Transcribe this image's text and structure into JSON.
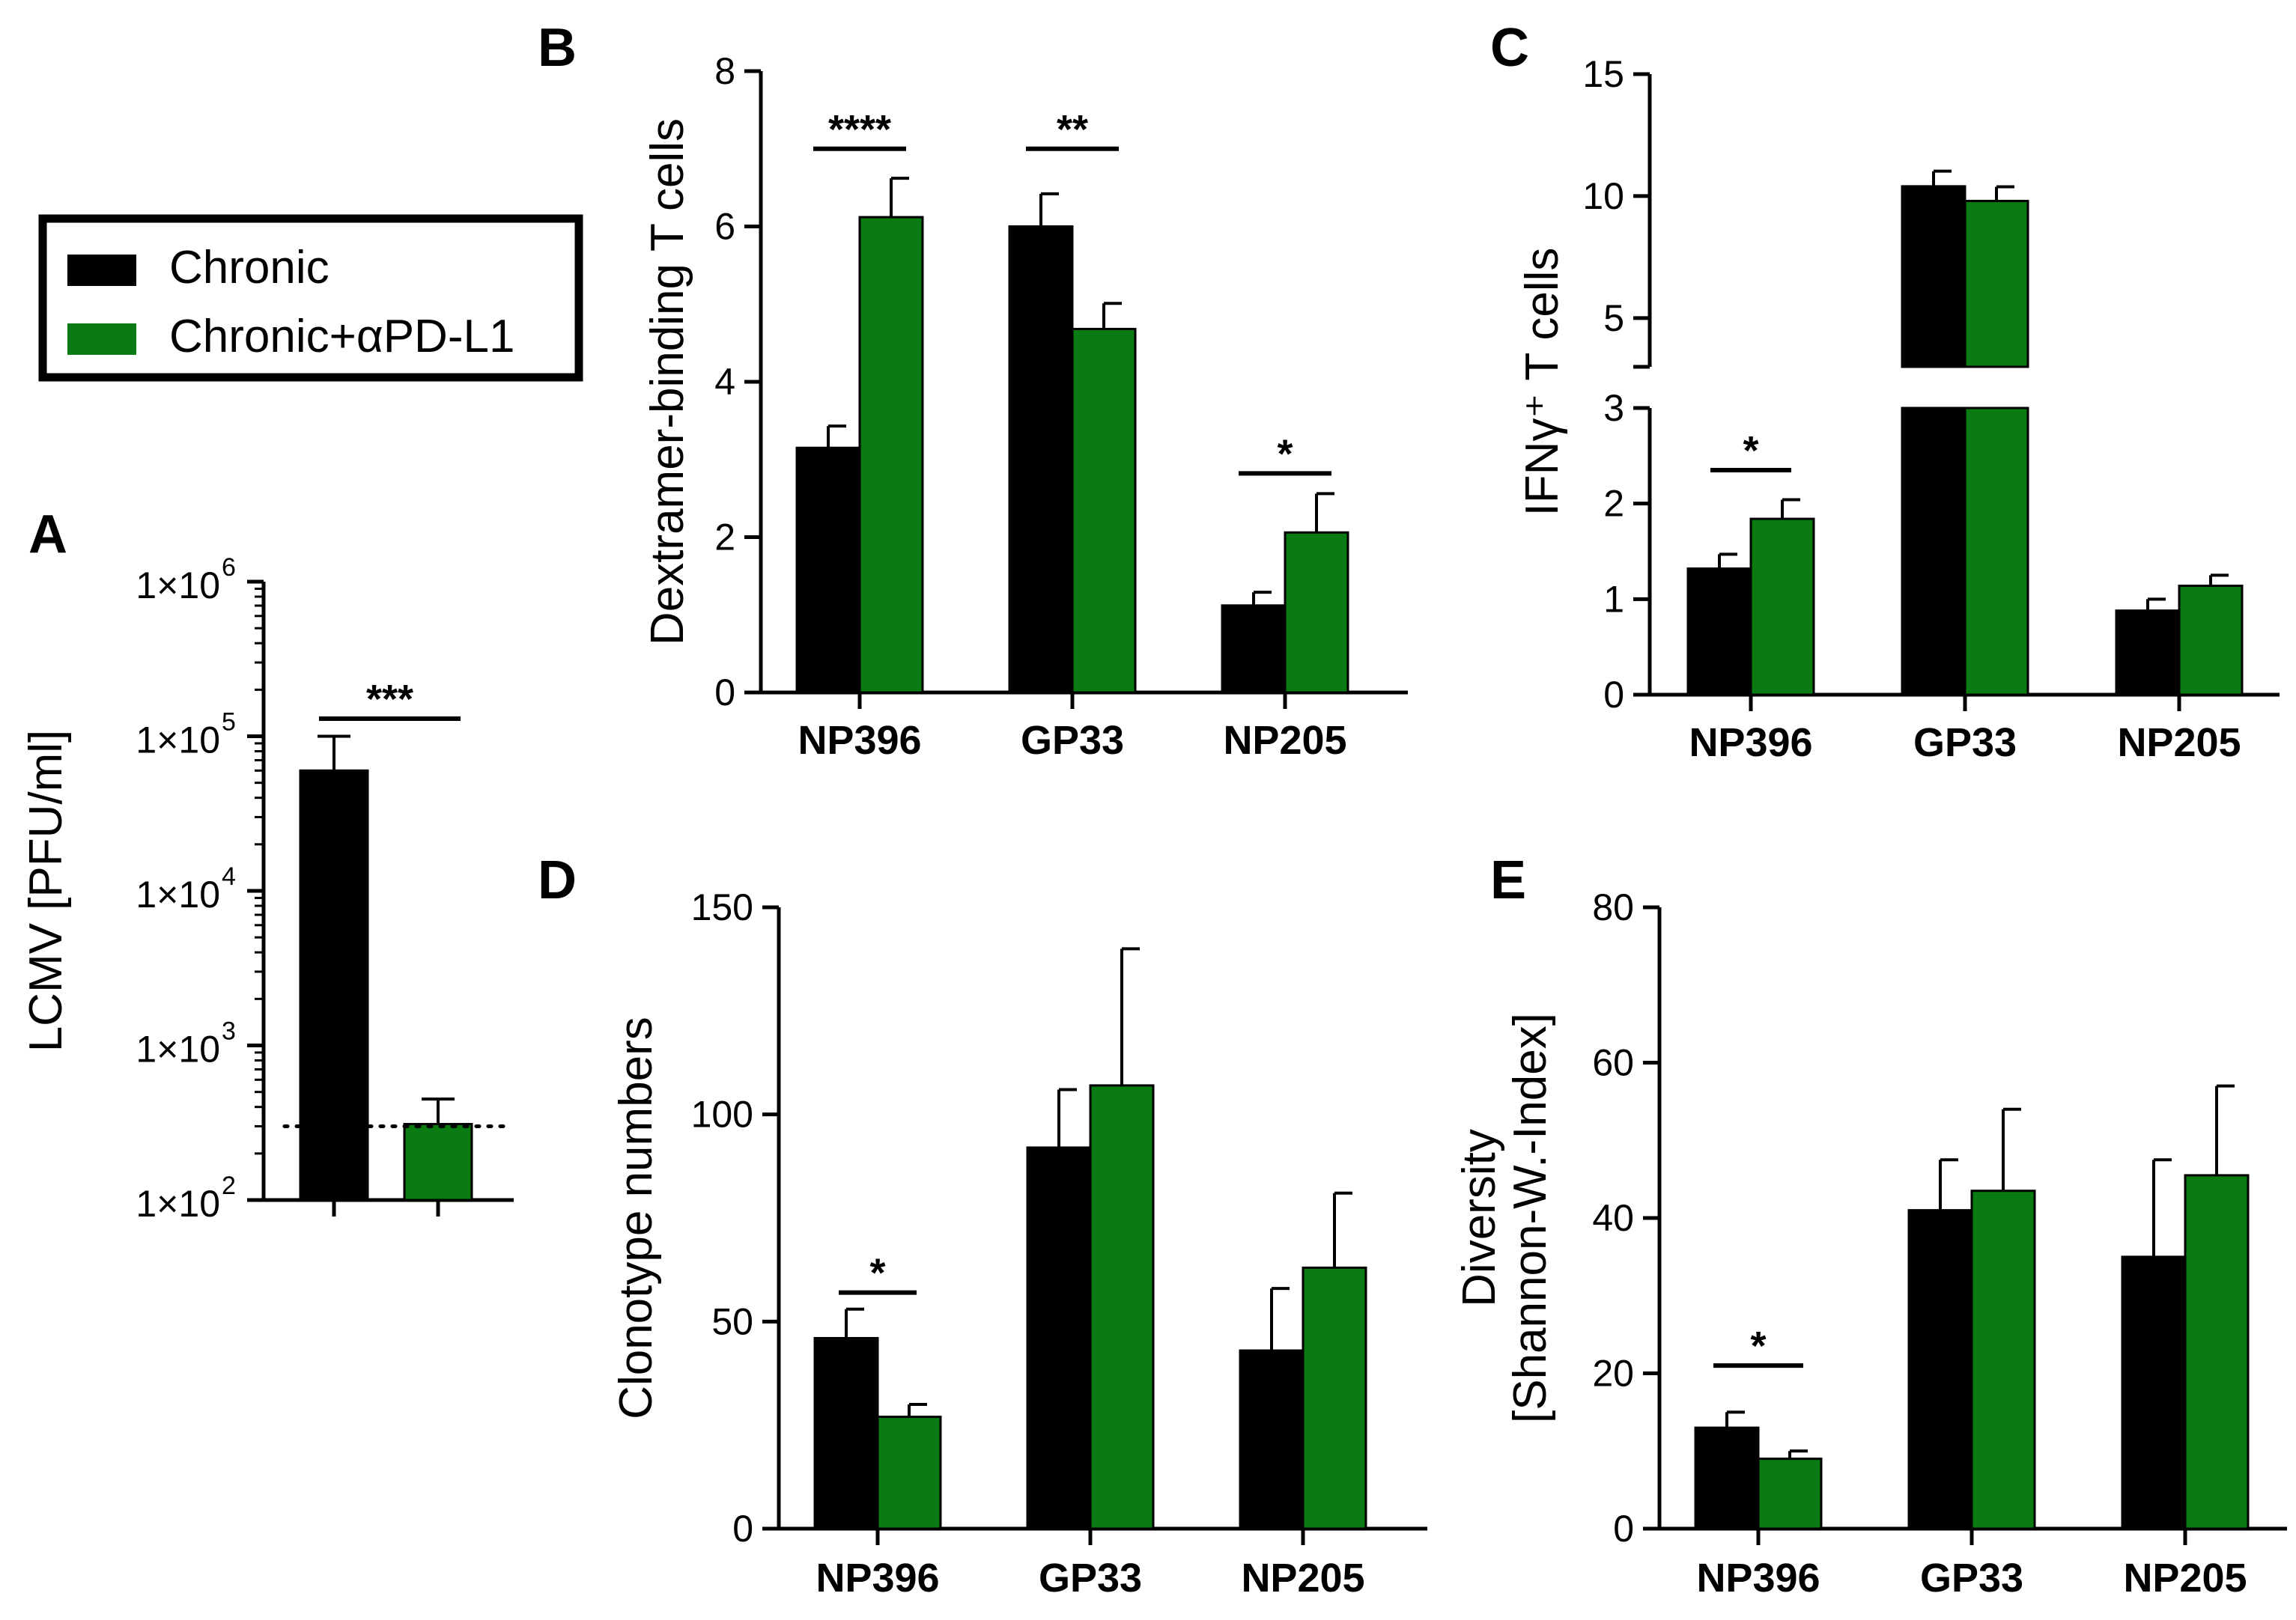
{
  "legend": {
    "items": [
      {
        "label": "Chronic",
        "color": "#000000"
      },
      {
        "label": "Chronic+αPD-L1",
        "color": "#0a7a12"
      }
    ]
  },
  "colors": {
    "chronic": "#000000",
    "treated": "#0a7a12",
    "axis": "#000000"
  },
  "chart_data": [
    {
      "id": "A",
      "title": "A",
      "type": "bar",
      "scale": "log10",
      "ylabel": "LCMV  [PFU/ml]",
      "ylim": [
        100,
        1000000
      ],
      "ytick_labels": [
        "1×10",
        "1×10",
        "1×10",
        "1×10",
        "1×10"
      ],
      "ytick_exponents": [
        "2",
        "3",
        "4",
        "5",
        "6"
      ],
      "categories": [
        "",
        ""
      ],
      "series": [
        {
          "name": "Chronic",
          "values": [
            60000,
            null
          ],
          "errors": [
            40000,
            null
          ]
        },
        {
          "name": "Chronic+αPD-L1",
          "values": [
            null,
            310
          ],
          "errors": [
            null,
            140
          ]
        }
      ],
      "detection_limit": 300,
      "significance": [
        {
          "label": "***",
          "from_group": 0,
          "to_group": 1,
          "y": 130000
        }
      ]
    },
    {
      "id": "B",
      "title": "B",
      "type": "bar",
      "ylabel": "Dextramer-binding T cells",
      "ylim": [
        0,
        8
      ],
      "yticks": [
        "0",
        "2",
        "4",
        "6",
        "8"
      ],
      "categories": [
        "NP396",
        "GP33",
        "NP205"
      ],
      "series": [
        {
          "name": "Chronic",
          "values": [
            3.15,
            6.0,
            1.12
          ],
          "errors": [
            0.28,
            0.42,
            0.17
          ]
        },
        {
          "name": "Chronic+αPD-L1",
          "values": [
            6.12,
            4.68,
            2.06
          ],
          "errors": [
            0.5,
            0.33,
            0.5
          ]
        }
      ],
      "significance": [
        {
          "label": "****",
          "group": 0,
          "y": 7.0
        },
        {
          "label": "**",
          "group": 1,
          "y": 7.0
        },
        {
          "label": "*",
          "group": 2,
          "y": 2.82
        }
      ]
    },
    {
      "id": "C",
      "title": "C",
      "type": "bar",
      "ylabel": "IFNγ⁺ T cells",
      "broken_axis": true,
      "ylim_lower": [
        0,
        3
      ],
      "ylim_upper": [
        3,
        15
      ],
      "yticks_lower": [
        "0",
        "1",
        "2",
        "3"
      ],
      "yticks_upper": [
        "5",
        "10",
        "15"
      ],
      "categories": [
        "NP396",
        "GP33",
        "NP205"
      ],
      "series": [
        {
          "name": "Chronic",
          "values": [
            1.32,
            10.4,
            0.88
          ],
          "errors": [
            0.15,
            0.62,
            0.12
          ]
        },
        {
          "name": "Chronic+αPD-L1",
          "values": [
            1.84,
            9.8,
            1.14
          ],
          "errors": [
            0.2,
            0.58,
            0.11
          ]
        }
      ],
      "significance": [
        {
          "label": "*",
          "group": 0,
          "y": 2.35
        }
      ]
    },
    {
      "id": "D",
      "title": "D",
      "type": "bar",
      "ylabel": "Clonotype numbers",
      "ylim": [
        0,
        150
      ],
      "yticks": [
        "0",
        "50",
        "100",
        "150"
      ],
      "categories": [
        "NP396",
        "GP33",
        "NP205"
      ],
      "series": [
        {
          "name": "Chronic",
          "values": [
            46,
            92,
            43
          ],
          "errors": [
            7,
            14,
            15
          ]
        },
        {
          "name": "Chronic+αPD-L1",
          "values": [
            27,
            107,
            63
          ],
          "errors": [
            3,
            33,
            18
          ]
        }
      ],
      "significance": [
        {
          "label": "*",
          "group": 0,
          "y": 57
        }
      ]
    },
    {
      "id": "E",
      "title": "E",
      "type": "bar",
      "ylabel": "Diversity",
      "ylabel2": "[Shannon-W.-Index]",
      "ylim": [
        0,
        80
      ],
      "yticks": [
        "0",
        "20",
        "40",
        "60",
        "80"
      ],
      "categories": [
        "NP396",
        "GP33",
        "NP205"
      ],
      "series": [
        {
          "name": "Chronic",
          "values": [
            13,
            41,
            35
          ],
          "errors": [
            2,
            6.5,
            12.5
          ]
        },
        {
          "name": "Chronic+αPD-L1",
          "values": [
            9,
            43.5,
            45.5
          ],
          "errors": [
            1,
            10.5,
            11.5
          ]
        }
      ],
      "significance": [
        {
          "label": "*",
          "group": 0,
          "y": 21
        }
      ]
    }
  ]
}
